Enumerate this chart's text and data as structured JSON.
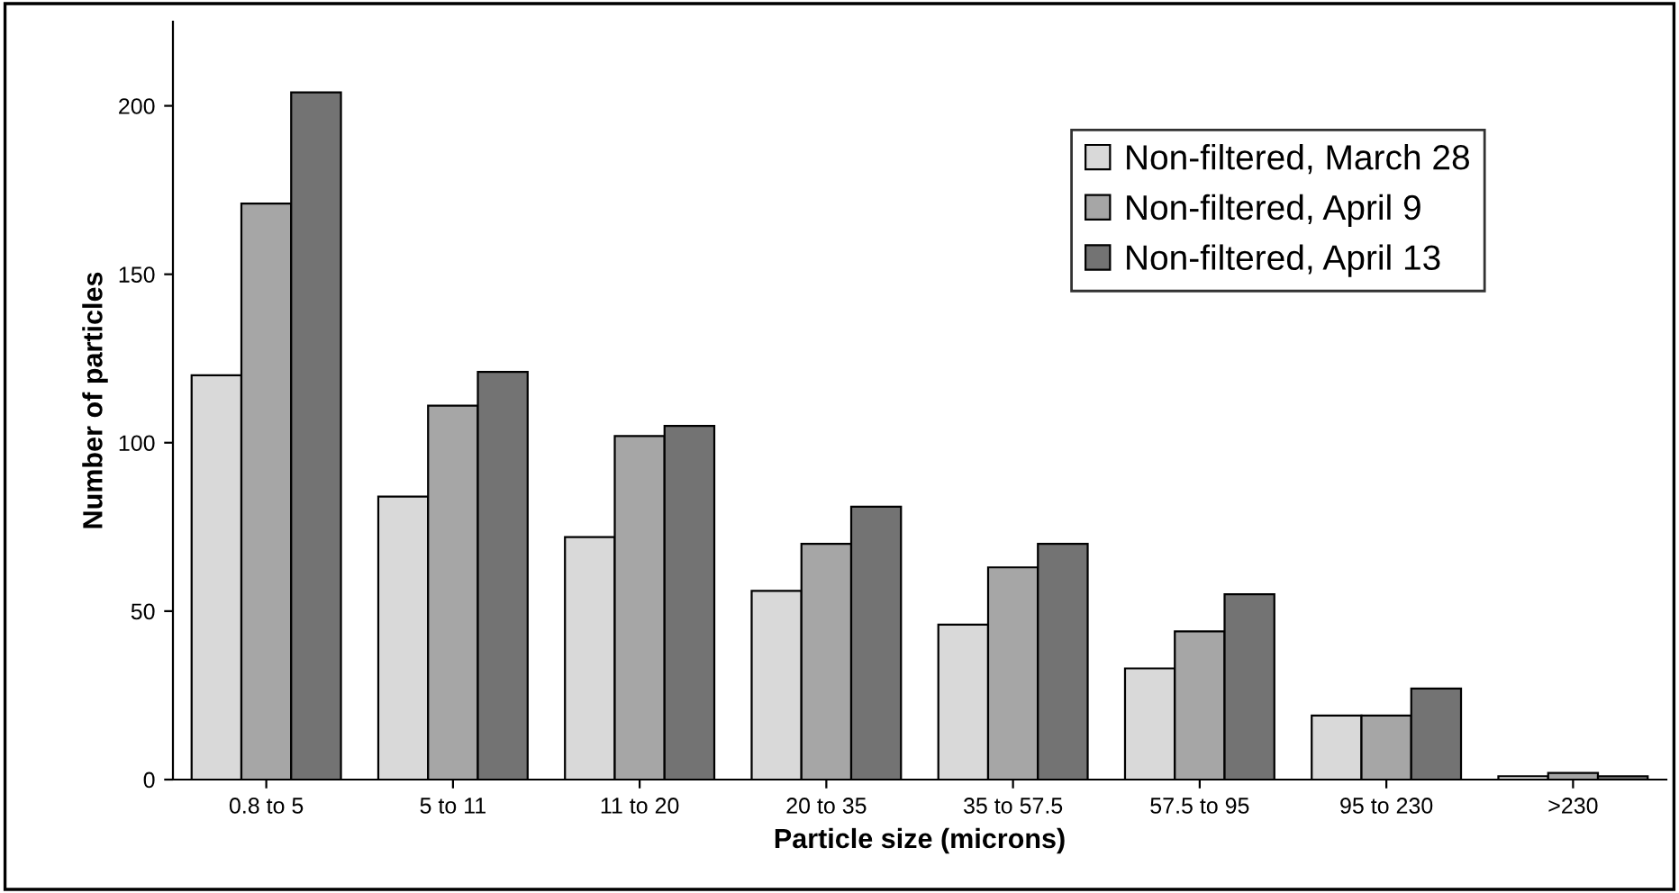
{
  "chart_data": {
    "type": "bar",
    "xlabel": "Particle size (microns)",
    "ylabel": "Number of particles",
    "categories": [
      "0.8 to 5",
      "5 to 11",
      "11 to 20",
      "20 to 35",
      "35 to 57.5",
      "57.5 to 95",
      "95 to 230",
      ">230"
    ],
    "series": [
      {
        "name": "Non-filtered, March 28",
        "color": "#d9d9d9",
        "values": [
          120,
          84,
          72,
          56,
          46,
          33,
          19,
          1
        ]
      },
      {
        "name": "Non-filtered, April 9",
        "color": "#a6a6a6",
        "values": [
          171,
          111,
          102,
          70,
          63,
          44,
          19,
          2
        ]
      },
      {
        "name": "Non-filtered, April 13",
        "color": "#737373",
        "values": [
          204,
          121,
          105,
          81,
          70,
          55,
          27,
          1
        ]
      }
    ],
    "ylim": [
      0,
      225
    ],
    "yticks": [
      0,
      50,
      100,
      150,
      200
    ],
    "grid": false,
    "legend": "top right"
  }
}
